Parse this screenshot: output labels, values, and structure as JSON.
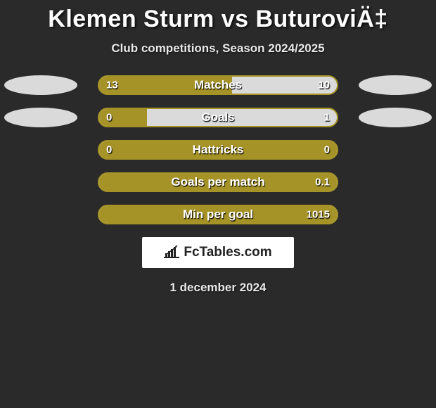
{
  "title": "Klemen Sturm vs ButuroviÄ‡",
  "subtitle": "Club competitions, Season 2024/2025",
  "date": "1 december 2024",
  "logo_text": "FcTables.com",
  "background_color": "#2a2a2a",
  "left_color": "#a69327",
  "right_color": "#dadada",
  "rows": [
    {
      "label": "Matches",
      "left_val": "13",
      "right_val": "10",
      "fill_pct": 56,
      "show_ellipses": true,
      "ellipse_left": "#dadada",
      "ellipse_right": "#dadada"
    },
    {
      "label": "Goals",
      "left_val": "0",
      "right_val": "1",
      "fill_pct": 20,
      "show_ellipses": true,
      "ellipse_left": "#dadada",
      "ellipse_right": "#dadada"
    },
    {
      "label": "Hattricks",
      "left_val": "0",
      "right_val": "0",
      "fill_pct": 100,
      "show_ellipses": false
    },
    {
      "label": "Goals per match",
      "left_val": "",
      "right_val": "0.1",
      "fill_pct": 100,
      "show_ellipses": false
    },
    {
      "label": "Min per goal",
      "left_val": "",
      "right_val": "1015",
      "fill_pct": 100,
      "show_ellipses": false
    }
  ]
}
